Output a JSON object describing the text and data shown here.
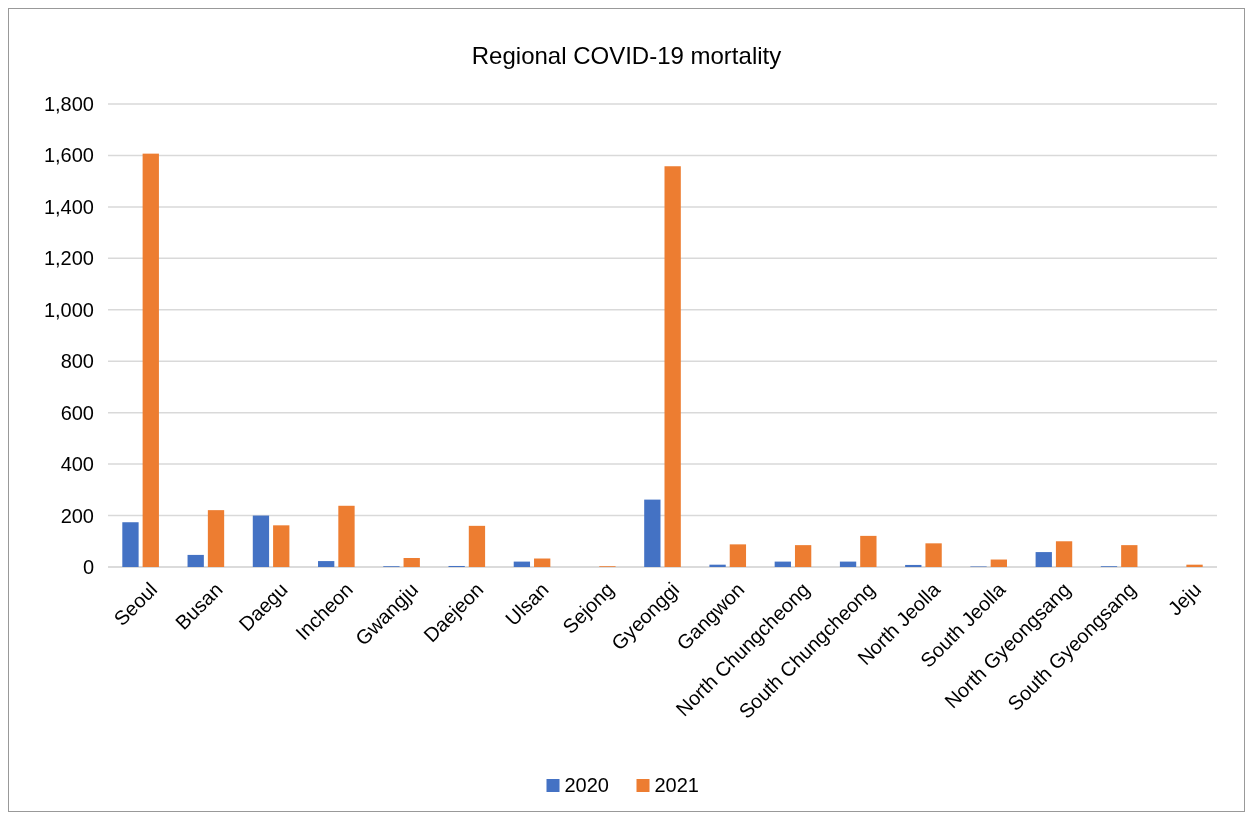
{
  "chart_data": {
    "type": "bar",
    "title": "Regional COVID-19 mortality",
    "categories": [
      "Seoul",
      "Busan",
      "Daegu",
      "Incheon",
      "Gwangju",
      "Daejeon",
      "Ulsan",
      "Sejong",
      "Gyeonggi",
      "Gangwon",
      "North Chungcheong",
      "South Chungcheong",
      "North Jeolla",
      "South Jeolla",
      "North Gyeongsang",
      "South Gyeongsang",
      "Jeju"
    ],
    "series": [
      {
        "name": "2020",
        "color": "#4472c4",
        "values": [
          174,
          47,
          200,
          23,
          3,
          4,
          21,
          0,
          262,
          9,
          21,
          21,
          8,
          2,
          58,
          3,
          0
        ]
      },
      {
        "name": "2021",
        "color": "#ed7d31",
        "values": [
          1607,
          221,
          162,
          238,
          35,
          160,
          33,
          3,
          1558,
          88,
          85,
          121,
          92,
          29,
          100,
          85,
          9
        ]
      }
    ],
    "ylim": [
      0,
      1800
    ],
    "yticks": [
      {
        "value": 0,
        "label": "0"
      },
      {
        "value": 200,
        "label": "200"
      },
      {
        "value": 400,
        "label": "400"
      },
      {
        "value": 600,
        "label": "600"
      },
      {
        "value": 800,
        "label": "800"
      },
      {
        "value": 1000,
        "label": "1,000"
      },
      {
        "value": 1200,
        "label": "1,200"
      },
      {
        "value": 1400,
        "label": "1,400"
      },
      {
        "value": 1600,
        "label": "1,600"
      },
      {
        "value": 1800,
        "label": "1,800"
      }
    ],
    "grid": "y",
    "legend": "bottom"
  }
}
